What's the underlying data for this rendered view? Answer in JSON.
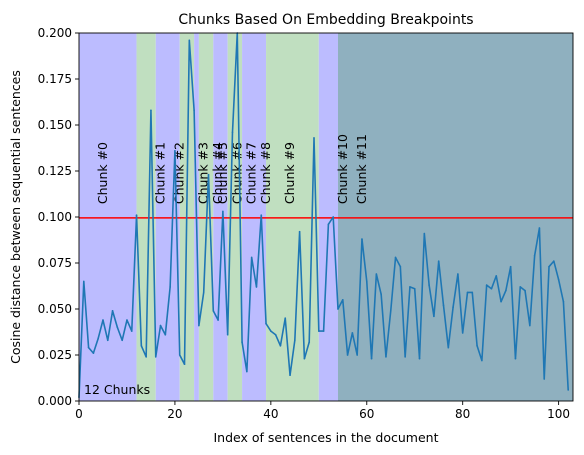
{
  "chart_data": {
    "type": "line",
    "title": "Chunks Based On Embedding Breakpoints",
    "xlabel": "Index of sentences in the document",
    "ylabel": "Cosine distance between sequential sentences",
    "xlim": [
      0,
      103
    ],
    "ylim": [
      0,
      0.2
    ],
    "xticks": [
      0,
      20,
      40,
      60,
      80,
      100
    ],
    "yticks": [
      0.0,
      0.025,
      0.05,
      0.075,
      0.1,
      0.125,
      0.15,
      0.175,
      0.2
    ],
    "xtick_labels": [
      "0",
      "20",
      "40",
      "60",
      "80",
      "100"
    ],
    "ytick_labels": [
      "0.000",
      "0.025",
      "0.050",
      "0.075",
      "0.100",
      "0.125",
      "0.150",
      "0.175",
      "0.200"
    ],
    "threshold": {
      "value": 0.0995,
      "color": "#ff0000"
    },
    "line_color": "#1f77b4",
    "chunk_count_label": "12 Chunks",
    "chunks": [
      {
        "label": "Chunk #0",
        "start": 0,
        "end": 12,
        "color": "#bcbcff"
      },
      {
        "label": "Chunk #1",
        "start": 12,
        "end": 16,
        "color": "#c0dfc0"
      },
      {
        "label": "Chunk #2",
        "start": 16,
        "end": 21,
        "color": "#bcbcff"
      },
      {
        "label": "Chunk #3",
        "start": 21,
        "end": 24,
        "color": "#c0dfc0"
      },
      {
        "label": "Chunk #4",
        "start": 24,
        "end": 25,
        "color": "#bcbcff"
      },
      {
        "label": "Chunk #5",
        "start": 25,
        "end": 28,
        "color": "#c0dfc0"
      },
      {
        "label": "Chunk #6",
        "start": 28,
        "end": 31,
        "color": "#bcbcff"
      },
      {
        "label": "Chunk #7",
        "start": 31,
        "end": 34,
        "color": "#c0dfc0"
      },
      {
        "label": "Chunk #8",
        "start": 34,
        "end": 39,
        "color": "#bcbcff"
      },
      {
        "label": "Chunk #9",
        "start": 39,
        "end": 50,
        "color": "#c0dfc0"
      },
      {
        "label": "Chunk #10",
        "start": 50,
        "end": 54,
        "color": "#bcbcff"
      },
      {
        "label": "Chunk #11",
        "start": 54,
        "end": 103,
        "color": "#8fb0bf"
      }
    ],
    "series": [
      {
        "x": [
          0,
          1,
          2,
          3,
          4,
          5,
          6,
          7,
          8,
          9,
          10,
          11,
          12,
          13,
          14,
          15,
          16,
          17,
          18,
          19,
          20,
          21,
          22,
          23,
          24,
          25,
          26,
          27,
          28,
          29,
          30,
          31,
          32,
          33,
          34,
          35,
          36,
          37,
          38,
          39,
          40,
          41,
          42,
          43,
          44,
          45,
          46,
          47,
          48,
          49,
          50,
          51,
          52,
          53,
          54,
          55,
          56,
          57,
          58,
          59,
          60,
          61,
          62,
          63,
          64,
          65,
          66,
          67,
          68,
          69,
          70,
          71,
          72,
          73,
          74,
          75,
          76,
          77,
          78,
          79,
          80,
          81,
          82,
          83,
          84,
          85,
          86,
          87,
          88,
          89,
          90,
          91,
          92,
          93,
          94,
          95,
          96,
          97,
          98,
          99,
          100,
          101,
          102
        ],
        "values": [
          0.002,
          0.065,
          0.029,
          0.026,
          0.034,
          0.044,
          0.033,
          0.049,
          0.04,
          0.033,
          0.044,
          0.038,
          0.101,
          0.03,
          0.024,
          0.158,
          0.024,
          0.041,
          0.036,
          0.062,
          0.136,
          0.025,
          0.02,
          0.196,
          0.158,
          0.041,
          0.059,
          0.123,
          0.049,
          0.044,
          0.103,
          0.036,
          0.146,
          0.2,
          0.032,
          0.016,
          0.078,
          0.062,
          0.101,
          0.042,
          0.038,
          0.036,
          0.03,
          0.045,
          0.014,
          0.033,
          0.092,
          0.023,
          0.032,
          0.143,
          0.038,
          0.038,
          0.096,
          0.1,
          0.05,
          0.055,
          0.025,
          0.037,
          0.025,
          0.088,
          0.065,
          0.023,
          0.069,
          0.058,
          0.024,
          0.049,
          0.078,
          0.073,
          0.024,
          0.062,
          0.061,
          0.023,
          0.091,
          0.063,
          0.046,
          0.076,
          0.052,
          0.029,
          0.051,
          0.069,
          0.037,
          0.059,
          0.059,
          0.03,
          0.022,
          0.063,
          0.061,
          0.068,
          0.054,
          0.06,
          0.073,
          0.023,
          0.062,
          0.06,
          0.041,
          0.079,
          0.094,
          0.012,
          0.073,
          0.076,
          0.066,
          0.054,
          0.006
        ]
      }
    ]
  }
}
